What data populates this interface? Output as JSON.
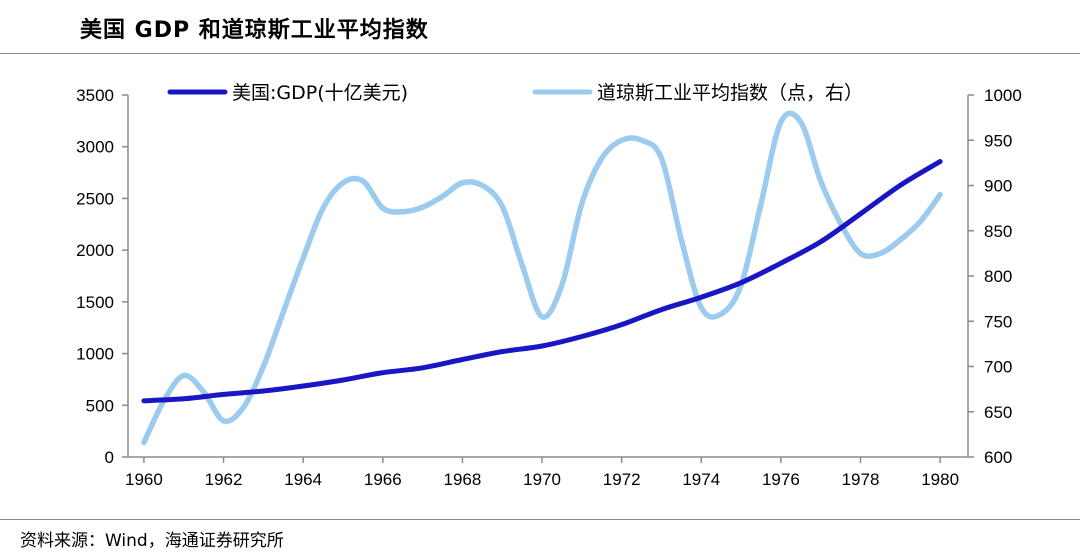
{
  "title": "美国 GDP 和道琼斯工业平均指数",
  "source": "资料来源：Wind，海通证券研究所",
  "colors": {
    "gdp": "#1a16c4",
    "dow": "#9ccbf0",
    "axis": "#8c8c8c"
  },
  "chart_data": {
    "type": "line",
    "title": "美国 GDP 和道琼斯工业平均指数",
    "x_ticks": [
      "1960",
      "1962",
      "1964",
      "1966",
      "1968",
      "1970",
      "1972",
      "1974",
      "1976",
      "1978",
      "1980"
    ],
    "xlim": [
      1959.6,
      1980.7
    ],
    "y_left": {
      "ylim": [
        0,
        3500
      ],
      "ticks": [
        "0",
        "500",
        "1000",
        "1500",
        "2000",
        "2500",
        "3000",
        "3500"
      ]
    },
    "y_right": {
      "ylim": [
        600,
        1000
      ],
      "ticks": [
        "600",
        "650",
        "700",
        "750",
        "800",
        "850",
        "900",
        "950",
        "1000"
      ]
    },
    "legend_position": "top",
    "series": [
      {
        "name": "美国:GDP(十亿美元)",
        "axis": "left",
        "x": [
          1960,
          1961,
          1962,
          1963,
          1964,
          1965,
          1966,
          1967,
          1968,
          1969,
          1970,
          1971,
          1972,
          1973,
          1974,
          1975,
          1976,
          1977,
          1978,
          1979,
          1980
        ],
        "values": [
          543,
          563,
          605,
          638,
          686,
          744,
          815,
          862,
          943,
          1019,
          1073,
          1165,
          1280,
          1425,
          1545,
          1685,
          1874,
          2081,
          2351,
          2627,
          2857
        ]
      },
      {
        "name": "道琼斯工业平均指数（点，右）",
        "axis": "right",
        "x": [
          1960,
          1960.5,
          1961,
          1961.5,
          1962,
          1962.5,
          1963,
          1963.5,
          1964,
          1964.5,
          1965,
          1965.5,
          1966,
          1966.5,
          1967,
          1967.5,
          1968,
          1968.5,
          1969,
          1969.5,
          1970,
          1970.5,
          1971,
          1971.5,
          1972,
          1972.5,
          1973,
          1973.5,
          1974,
          1974.5,
          1975,
          1975.5,
          1976,
          1976.5,
          1977,
          1977.5,
          1978,
          1978.5,
          1979,
          1979.5,
          1980
        ],
        "values": [
          616,
          662,
          690,
          672,
          640,
          655,
          700,
          760,
          820,
          875,
          903,
          905,
          875,
          871,
          876,
          888,
          903,
          900,
          877,
          812,
          755,
          790,
          880,
          930,
          950,
          950,
          930,
          840,
          765,
          758,
          790,
          880,
          970,
          970,
          905,
          858,
          825,
          825,
          840,
          860,
          890
        ]
      }
    ]
  }
}
